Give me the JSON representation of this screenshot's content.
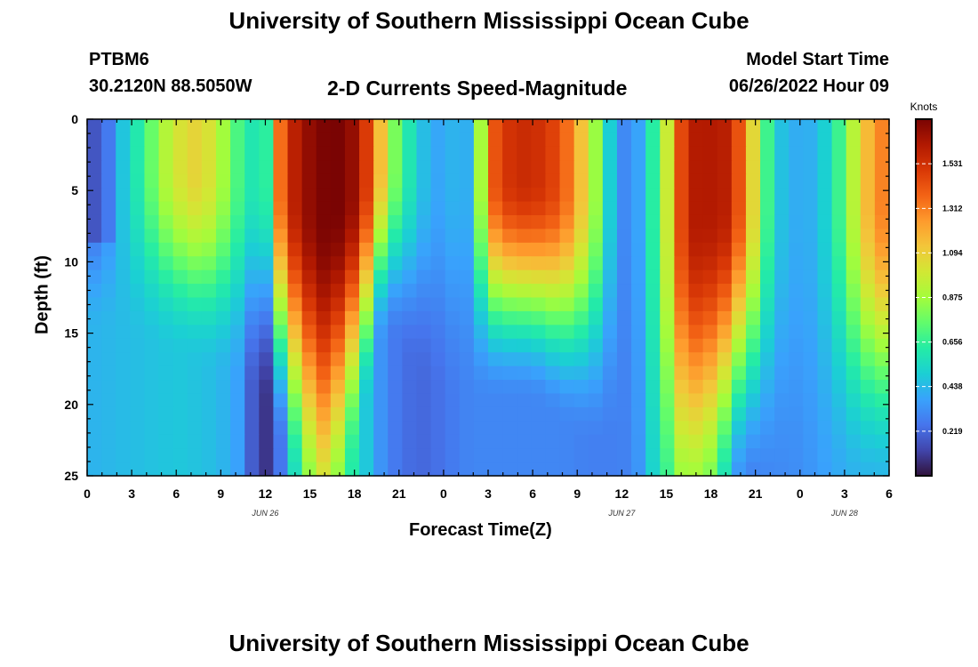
{
  "page": {
    "title_top": "University of Southern Mississippi Ocean Cube",
    "title_bottom": "University of Southern Mississippi Ocean Cube",
    "station": "PTBM6",
    "coords": "30.2120N  88.5050W",
    "plot_title": "2-D Currents Speed-Magnitude",
    "model_start_label": "Model Start Time",
    "model_start_value": "06/26/2022 Hour 09"
  },
  "colors": {
    "colormap": [
      "#30123b",
      "#4145ab",
      "#4675ed",
      "#39a2fc",
      "#1bcfd4",
      "#24eca6",
      "#61fc6c",
      "#a4fc3b",
      "#d1e834",
      "#f3c63a",
      "#fe9b2d",
      "#f36315",
      "#d93806",
      "#b11901",
      "#7a0403"
    ]
  },
  "chart_data": {
    "type": "heatmap",
    "title": "2-D Currents Speed-Magnitude",
    "xlabel": "Forecast Time(Z)",
    "ylabel": "Depth (ft)",
    "x_tick_labels": [
      "0",
      "3",
      "6",
      "9",
      "12",
      "15",
      "18",
      "21",
      "0",
      "3",
      "6",
      "9",
      "12",
      "15",
      "18",
      "21",
      "0",
      "3",
      "6"
    ],
    "x_range_hours": [
      0,
      54
    ],
    "date_labels": [
      {
        "label": "JUN 26",
        "hour": 12
      },
      {
        "label": "JUN 27",
        "hour": 36
      },
      {
        "label": "JUN 28",
        "hour": 51
      }
    ],
    "y_ticks": [
      0,
      5,
      10,
      15,
      20,
      25
    ],
    "y_range": [
      0,
      25
    ],
    "y_inverted": true,
    "colorbar": {
      "label": "Knots",
      "range": [
        0,
        1.75
      ],
      "ticks": [
        "1.531",
        "1.312",
        "1.094",
        "0.875",
        "0.656",
        "0.438",
        "0.219"
      ],
      "tick_values": [
        1.531,
        1.312,
        1.094,
        0.875,
        0.656,
        0.438,
        0.219
      ]
    },
    "nx": 56,
    "nz": 26,
    "surface_profile_knots": [
      [
        0,
        0.15
      ],
      [
        1,
        0.2
      ],
      [
        2,
        0.42
      ],
      [
        3,
        0.55
      ],
      [
        4,
        0.7
      ],
      [
        5,
        0.88
      ],
      [
        6,
        1.0
      ],
      [
        7,
        1.08
      ],
      [
        8,
        1.05
      ],
      [
        9,
        0.9
      ],
      [
        10,
        0.72
      ],
      [
        11,
        0.6
      ],
      [
        12,
        0.6
      ],
      [
        13,
        1.35
      ],
      [
        14,
        1.6
      ],
      [
        15,
        1.7
      ],
      [
        16,
        1.75
      ],
      [
        17,
        1.75
      ],
      [
        18,
        1.68
      ],
      [
        19,
        1.45
      ],
      [
        20,
        1.05
      ],
      [
        21,
        0.7
      ],
      [
        22,
        0.55
      ],
      [
        23,
        0.4
      ],
      [
        24,
        0.38
      ],
      [
        25,
        0.45
      ],
      [
        26,
        0.38
      ],
      [
        27,
        1.35
      ],
      [
        28,
        1.5
      ],
      [
        29,
        1.55
      ],
      [
        30,
        1.55
      ],
      [
        31,
        1.5
      ],
      [
        32,
        1.42
      ],
      [
        33,
        1.2
      ],
      [
        34,
        0.95
      ],
      [
        35,
        0.55
      ],
      [
        36,
        0.3
      ],
      [
        37,
        0.35
      ],
      [
        38,
        0.6
      ],
      [
        39,
        0.95
      ],
      [
        40,
        1.45
      ],
      [
        41,
        1.62
      ],
      [
        42,
        1.62
      ],
      [
        43,
        1.6
      ],
      [
        44,
        1.4
      ],
      [
        45,
        1.0
      ],
      [
        46,
        0.6
      ],
      [
        47,
        0.42
      ],
      [
        48,
        0.4
      ],
      [
        49,
        0.42
      ],
      [
        50,
        0.55
      ],
      [
        51,
        0.75
      ],
      [
        52,
        1.05
      ],
      [
        53,
        1.25
      ],
      [
        54,
        1.35
      ]
    ],
    "deep_profile_knots": [
      [
        0,
        0.42
      ],
      [
        2,
        0.44
      ],
      [
        4,
        0.46
      ],
      [
        6,
        0.48
      ],
      [
        8,
        0.46
      ],
      [
        10,
        0.4
      ],
      [
        11,
        0.2
      ],
      [
        12,
        0.08
      ],
      [
        13,
        0.25
      ],
      [
        14,
        0.55
      ],
      [
        15,
        0.75
      ],
      [
        16,
        0.8
      ],
      [
        17,
        0.75
      ],
      [
        18,
        0.6
      ],
      [
        19,
        0.45
      ],
      [
        20,
        0.3
      ],
      [
        21,
        0.25
      ],
      [
        22,
        0.22
      ],
      [
        23,
        0.22
      ],
      [
        24,
        0.25
      ],
      [
        25,
        0.28
      ],
      [
        26,
        0.3
      ],
      [
        28,
        0.3
      ],
      [
        30,
        0.3
      ],
      [
        32,
        0.3
      ],
      [
        34,
        0.28
      ],
      [
        35,
        0.28
      ],
      [
        36,
        0.28
      ],
      [
        37,
        0.32
      ],
      [
        38,
        0.5
      ],
      [
        39,
        0.62
      ],
      [
        40,
        0.68
      ],
      [
        41,
        0.72
      ],
      [
        42,
        0.7
      ],
      [
        43,
        0.5
      ],
      [
        44,
        0.3
      ],
      [
        45,
        0.28
      ],
      [
        46,
        0.3
      ],
      [
        48,
        0.32
      ],
      [
        50,
        0.38
      ],
      [
        52,
        0.42
      ],
      [
        54,
        0.42
      ]
    ],
    "mix_depth_ft": [
      [
        0,
        9
      ],
      [
        6,
        10
      ],
      [
        12,
        12
      ],
      [
        16,
        20
      ],
      [
        20,
        9
      ],
      [
        24,
        12
      ],
      [
        30,
        12
      ],
      [
        34,
        14
      ],
      [
        36,
        14
      ],
      [
        40,
        20
      ],
      [
        44,
        16
      ],
      [
        48,
        16
      ],
      [
        52,
        16
      ],
      [
        54,
        16
      ]
    ]
  }
}
